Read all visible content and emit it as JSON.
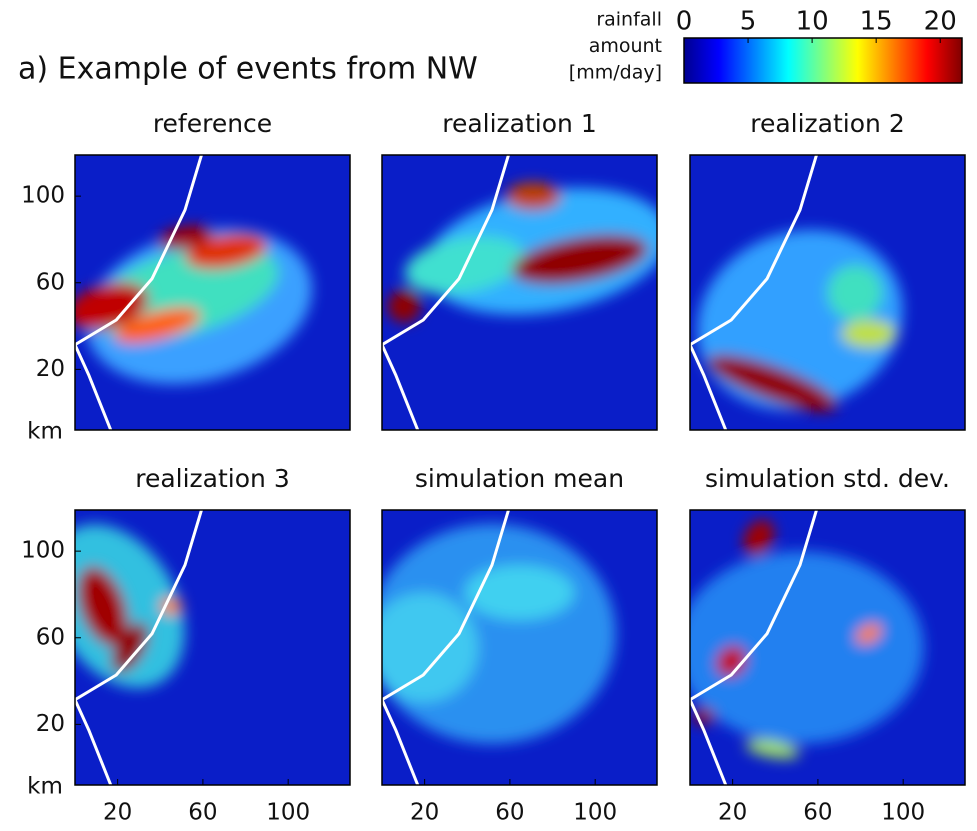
{
  "figure_title": "a) Example of events from NW",
  "colorbar": {
    "label": [
      "rainfall",
      "amount",
      "[mm/day]"
    ],
    "lim": [
      0,
      21.7
    ],
    "ticks": [
      0,
      5,
      10,
      15,
      20
    ],
    "colormap": "jet"
  },
  "chart_data": [
    {
      "type": "heatmap",
      "title": "reference",
      "xlim": [
        0,
        129
      ],
      "ylim": [
        -8,
        119
      ],
      "yticks": [
        20,
        60,
        100
      ],
      "ylabel": "km"
    },
    {
      "type": "heatmap",
      "title": "realization 1",
      "xlim": [
        0,
        129
      ],
      "ylim": [
        -8,
        119
      ]
    },
    {
      "type": "heatmap",
      "title": "realization 2",
      "xlim": [
        0,
        129
      ],
      "ylim": [
        -8,
        119
      ]
    },
    {
      "type": "heatmap",
      "title": "realization 3",
      "xlim": [
        0,
        129
      ],
      "ylim": [
        -8,
        119
      ],
      "xticks": [
        20,
        60,
        100
      ],
      "yticks": [
        20,
        60,
        100
      ],
      "ylabel": "km"
    },
    {
      "type": "heatmap",
      "title": "simulation mean",
      "xlim": [
        0,
        129
      ],
      "ylim": [
        -8,
        119
      ],
      "xticks": [
        20,
        60,
        100
      ]
    },
    {
      "type": "heatmap",
      "title": "simulation std. dev.",
      "xlim": [
        0,
        129
      ],
      "ylim": [
        -8,
        119
      ],
      "xticks": [
        20,
        60,
        100
      ]
    }
  ]
}
